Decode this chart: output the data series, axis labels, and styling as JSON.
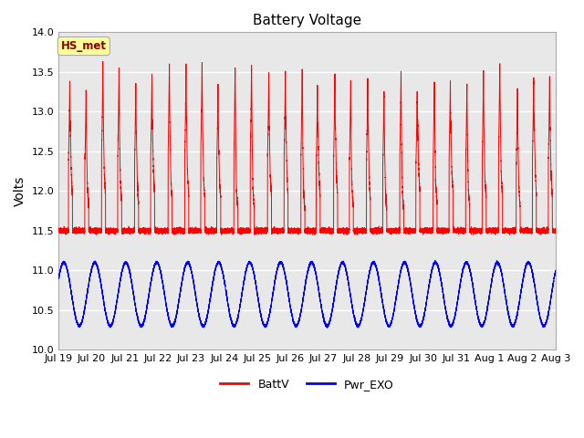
{
  "title": "Battery Voltage",
  "ylabel": "Volts",
  "ylim": [
    10.0,
    14.0
  ],
  "yticks": [
    10.0,
    10.5,
    11.0,
    11.5,
    12.0,
    12.5,
    13.0,
    13.5,
    14.0
  ],
  "x_tick_labels": [
    "Jul 19",
    "Jul 20",
    "Jul 21",
    "Jul 22",
    "Jul 23",
    "Jul 24",
    "Jul 25",
    "Jul 26",
    "Jul 27",
    "Jul 28",
    "Jul 29",
    "Jul 30",
    "Jul 31",
    "Aug 1",
    "Aug 2",
    "Aug 3"
  ],
  "num_days": 15,
  "annotation_text": "HS_met",
  "annotation_box_color": "#ffff99",
  "annotation_text_color": "#8b0000",
  "annotation_box_edge_color": "#aaaaaa",
  "red_line_color": "#ff0000",
  "blue_line_color": "#0000ff",
  "plot_bg_color": "#e8e8e8",
  "legend_red_label": "BattV",
  "legend_blue_label": "Pwr_EXO",
  "title_fontsize": 11,
  "label_fontsize": 10,
  "tick_fontsize": 8,
  "legend_fontsize": 9
}
